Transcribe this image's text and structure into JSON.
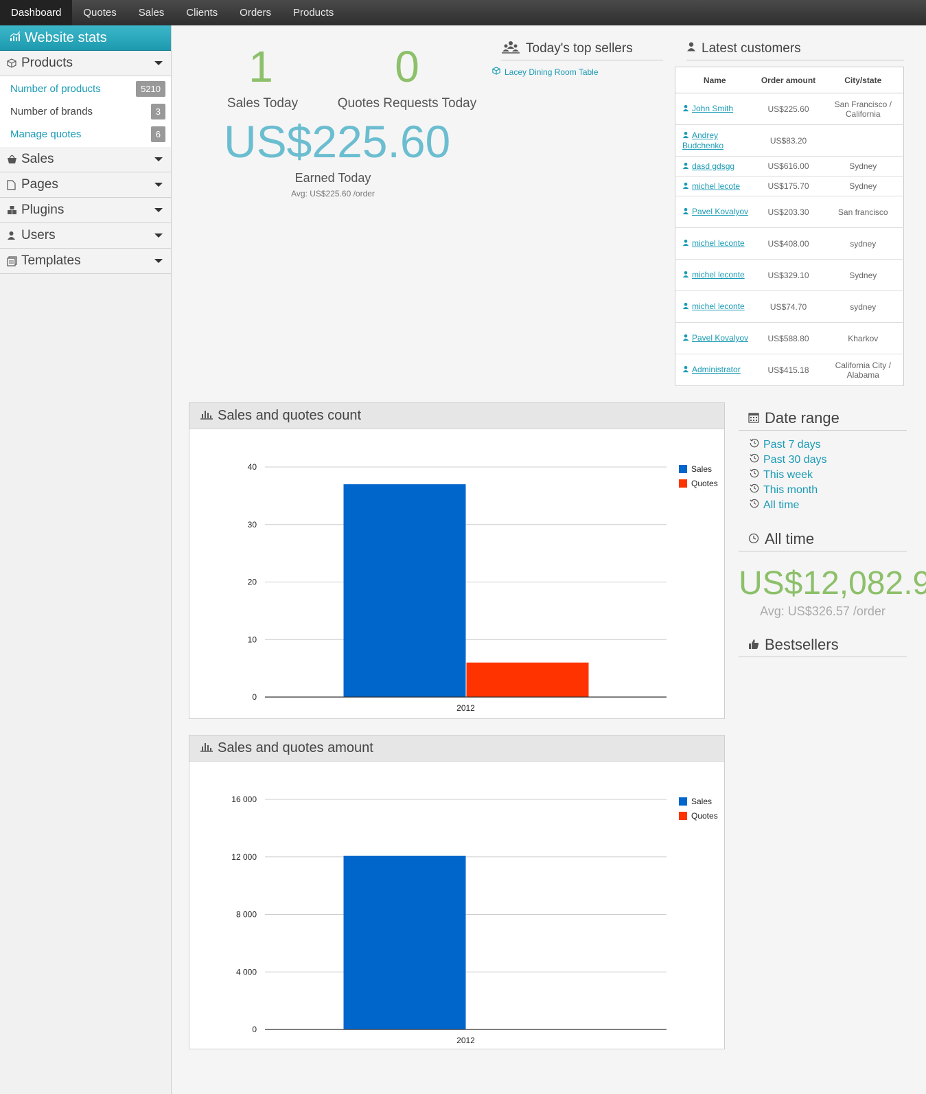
{
  "nav": {
    "items": [
      "Dashboard",
      "Quotes",
      "Sales",
      "Clients",
      "Orders",
      "Products"
    ],
    "active": "Dashboard"
  },
  "sidebar": {
    "title": "Website stats",
    "products_label": "Products",
    "products_items": [
      {
        "label": "Number of products",
        "badge": "5210"
      },
      {
        "label": "Number of brands",
        "badge": "3"
      },
      {
        "label": "Manage quotes",
        "badge": "6"
      }
    ],
    "sections": [
      "Sales",
      "Pages",
      "Plugins",
      "Users",
      "Templates"
    ]
  },
  "stats": {
    "sales_today_value": "1",
    "sales_today_label": "Sales Today",
    "quotes_today_value": "0",
    "quotes_today_label": "Quotes Requests Today",
    "earned_today_value": "US$225.60",
    "earned_today_label": "Earned Today",
    "earned_avg": "Avg: US$225.60 /order"
  },
  "top_sellers": {
    "title": "Today's top sellers",
    "items": [
      "Lacey Dining Room Table"
    ]
  },
  "latest_customers": {
    "title": "Latest customers",
    "headers": [
      "Name",
      "Order amount",
      "City/state"
    ],
    "rows": [
      {
        "name": "John Smith",
        "amount": "US$225.60",
        "city": "San Francisco / California"
      },
      {
        "name": "Andrey Budchenko",
        "amount": "US$83.20",
        "city": ""
      },
      {
        "name": "dasd gdsgg",
        "amount": "US$616.00",
        "city": "Sydney"
      },
      {
        "name": "michel lecote",
        "amount": "US$175.70",
        "city": "Sydney"
      },
      {
        "name": "Pavel Kovalyov",
        "amount": "US$203.30",
        "city": "San francisco"
      },
      {
        "name": "michel leconte",
        "amount": "US$408.00",
        "city": "sydney"
      },
      {
        "name": "michel leconte",
        "amount": "US$329.10",
        "city": "Sydney"
      },
      {
        "name": "michel leconte",
        "amount": "US$74.70",
        "city": "sydney"
      },
      {
        "name": "Pavel Kovalyov",
        "amount": "US$588.80",
        "city": "Kharkov"
      },
      {
        "name": "Administrator",
        "amount": "US$415.18",
        "city": "California City / Alabama"
      }
    ]
  },
  "date_range": {
    "title": "Date range",
    "links": [
      "Past 7 days",
      "Past 30 days",
      "This week",
      "This month",
      "All time"
    ]
  },
  "all_time": {
    "title": "All time",
    "amount": "US$12,082.9",
    "avg": "Avg: US$326.57 /order"
  },
  "bestsellers": {
    "title": "Bestsellers"
  },
  "colors": {
    "sales": "#0066cc",
    "quotes": "#ff3300",
    "accent": "#1a9bb5",
    "green": "#8dc06a"
  },
  "chart_data": [
    {
      "type": "bar",
      "title": "Sales and quotes count",
      "categories": [
        "2012"
      ],
      "series": [
        {
          "name": "Sales",
          "values": [
            37
          ]
        },
        {
          "name": "Quotes",
          "values": [
            6
          ]
        }
      ],
      "yticks": [
        "0",
        "10",
        "20",
        "30",
        "40"
      ],
      "ylim": [
        0,
        40
      ],
      "legend": "right"
    },
    {
      "type": "bar",
      "title": "Sales and quotes amount",
      "categories": [
        "2012"
      ],
      "series": [
        {
          "name": "Sales",
          "values": [
            12083
          ]
        },
        {
          "name": "Quotes",
          "values": [
            0
          ]
        }
      ],
      "yticks": [
        "0",
        "4 000",
        "8 000",
        "12 000",
        "16 000"
      ],
      "ylim": [
        0,
        16000
      ],
      "legend": "right"
    }
  ]
}
